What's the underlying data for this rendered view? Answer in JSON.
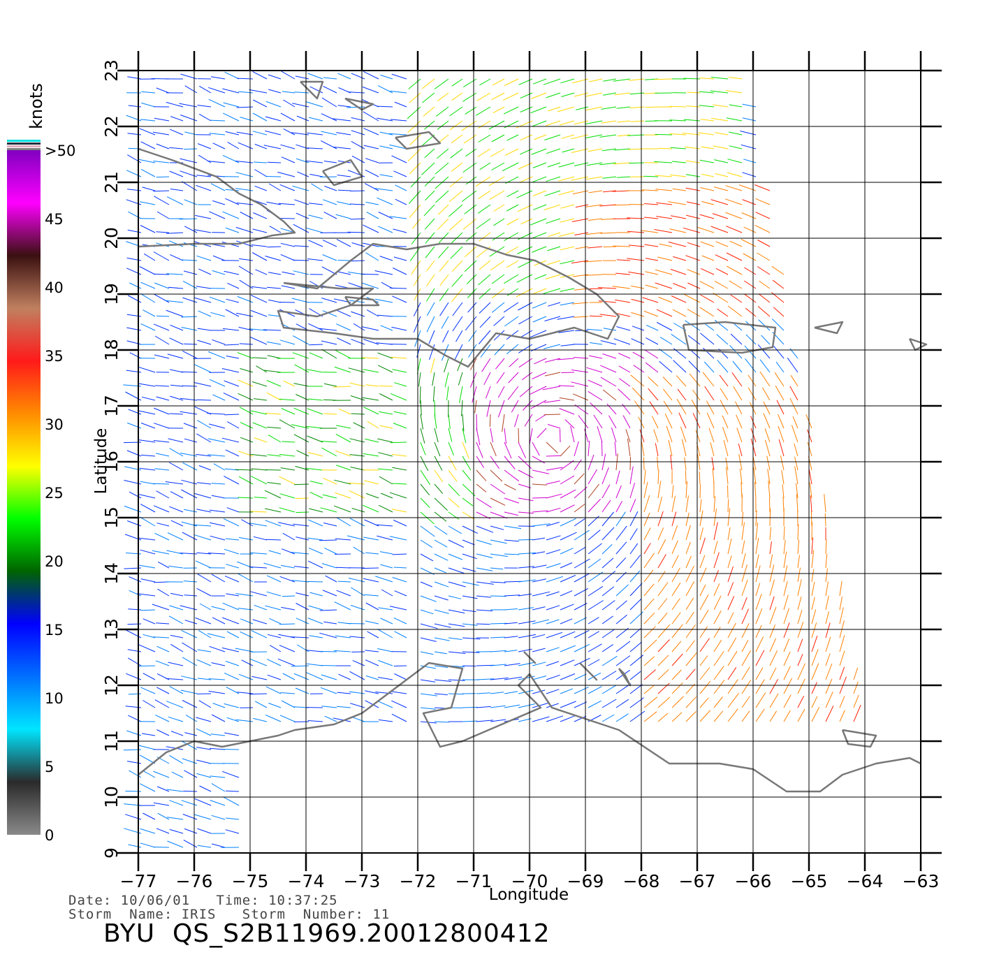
{
  "axes": {
    "xlabel": "Longitude",
    "ylabel": "Latitude",
    "lon_ticks": [
      -77,
      -76,
      -75,
      -74,
      -73,
      -72,
      -71,
      -70,
      -69,
      -68,
      -67,
      -66,
      -65,
      -64,
      -63
    ],
    "lat_ticks": [
      9,
      10,
      11,
      12,
      13,
      14,
      15,
      16,
      17,
      18,
      19,
      20,
      21,
      22,
      23
    ],
    "lon_range": [
      -77,
      -63
    ],
    "lat_range": [
      9,
      23
    ],
    "grid": true
  },
  "colorbar": {
    "unit_label": "knots",
    "labels": [
      "0",
      "5",
      "10",
      "15",
      "20",
      "25",
      "30",
      "35",
      "40",
      "45",
      ">50"
    ],
    "colors": [
      "#8a8a8a",
      "#2a2a2a",
      "#00e6ff",
      "#0070ff",
      "#0000ff",
      "#006400",
      "#00ff00",
      "#ffff00",
      "#ff8c00",
      "#ff1a1a",
      "#c08060",
      "#3a1010",
      "#ff00ff",
      "#8000c0"
    ]
  },
  "footer": {
    "line1": "Date: 10/06/01   Time: 10:37:25",
    "line2": "Storm  Name: IRIS   Storm  Number: 11",
    "title": "BYU  QS_S2B11969.20012800412"
  },
  "chart_data": {
    "type": "wind-vector-map",
    "title": "BYU  QS_S2B11969.20012800412",
    "xlabel": "Longitude",
    "ylabel": "Latitude",
    "xlim": [
      -77,
      -63
    ],
    "ylim": [
      9,
      23
    ],
    "storm_name": "IRIS",
    "storm_number": "11",
    "swath_east_edge_lon": [
      -66,
      -64
    ],
    "wind_speed_scale_knots": [
      0,
      50
    ],
    "regions": [
      {
        "name": "northwest",
        "lon": [
          -77,
          -72
        ],
        "lat": [
          19,
          23
        ],
        "speed_knots": 12
      },
      {
        "name": "north-central",
        "lon": [
          -72,
          -66
        ],
        "lat": [
          19,
          23
        ],
        "speed_knots": 20
      },
      {
        "name": "northeast",
        "lon": [
          -69,
          -65
        ],
        "lat": [
          18.5,
          21
        ],
        "speed_knots": 30
      },
      {
        "name": "storm-core",
        "lon": [
          -71.5,
          -67.5
        ],
        "lat": [
          15,
          18
        ],
        "speed_knots": 42
      },
      {
        "name": "east",
        "lon": [
          -68,
          -64
        ],
        "lat": [
          11,
          17.5
        ],
        "speed_knots": 28
      },
      {
        "name": "central",
        "lon": [
          -75,
          -71
        ],
        "lat": [
          14.5,
          18
        ],
        "speed_knots": 18
      },
      {
        "name": "southwest",
        "lon": [
          -77,
          -70
        ],
        "lat": [
          9,
          15
        ],
        "speed_knots": 11
      }
    ]
  }
}
